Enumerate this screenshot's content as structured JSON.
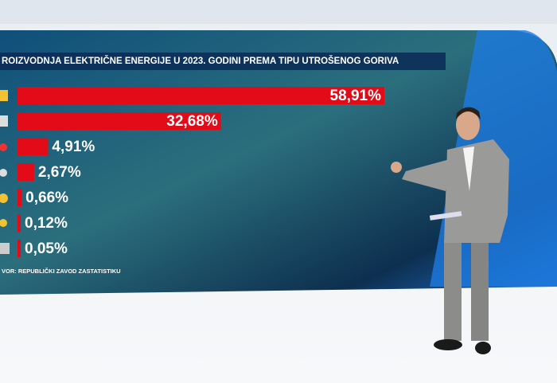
{
  "chart_data": {
    "type": "bar",
    "orientation": "horizontal",
    "title": "ROIZVODNJA ELEKTRIČNE ENERGIJE U 2023. GODINI PREMA TIPU UTROŠENOG GORIVA",
    "source": "VOR: REPUBLIČKI ZAVOD ZASTATISTIKU",
    "categories": [
      null,
      null,
      null,
      null,
      null,
      null,
      null
    ],
    "values": [
      58.91,
      32.68,
      4.91,
      2.67,
      0.66,
      0.12,
      0.05
    ],
    "value_labels": [
      "58,91%",
      "32,68%",
      "4,91%",
      "2,67%",
      "0,66%",
      "0,12%",
      "0,05%"
    ],
    "color": "#e30b17"
  }
}
